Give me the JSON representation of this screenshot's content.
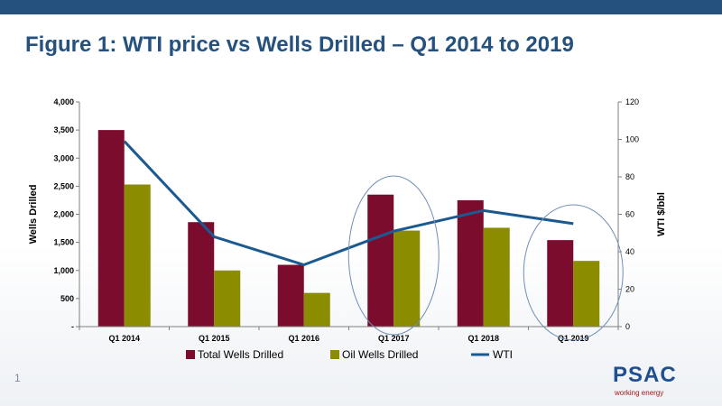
{
  "slide": {
    "title": "Figure 1:  WTI price vs Wells Drilled – Q1 2014 to 2019",
    "page_number": "1",
    "logo_text": "PSAC",
    "logo_tagline": "working energy",
    "header_bar_color": "#25517f"
  },
  "chart_data": {
    "type": "bar",
    "categories": [
      "Q1 2014",
      "Q1 2015",
      "Q1 2016",
      "Q1 2017",
      "Q1 2018",
      "Q1 2019"
    ],
    "series": [
      {
        "name": "Total Wells Drilled",
        "type": "bar",
        "axis": "left",
        "color": "#7b0c2e",
        "values": [
          3500,
          1860,
          1100,
          2350,
          2250,
          1540
        ]
      },
      {
        "name": "Oil Wells Drilled",
        "type": "bar",
        "axis": "left",
        "color": "#8c8c00",
        "values": [
          2530,
          1000,
          600,
          1710,
          1760,
          1170
        ]
      },
      {
        "name": "WTI",
        "type": "line",
        "axis": "right",
        "color": "#1b5a90",
        "values": [
          99,
          48,
          33,
          51,
          62,
          55
        ]
      }
    ],
    "ylabel": "Wells Drilled",
    "y2label": "WTI $/bbl",
    "ylim": [
      0,
      4000
    ],
    "y2lim": [
      0,
      120
    ],
    "yticks": [
      {
        "value": 0,
        "label": "-"
      },
      {
        "value": 500,
        "label": "500"
      },
      {
        "value": 1000,
        "label": "1,000"
      },
      {
        "value": 1500,
        "label": "1,500"
      },
      {
        "value": 2000,
        "label": "2,000"
      },
      {
        "value": 2500,
        "label": "2,500"
      },
      {
        "value": 3000,
        "label": "3,000"
      },
      {
        "value": 3500,
        "label": "3,500"
      },
      {
        "value": 4000,
        "label": "4,000"
      }
    ],
    "y2ticks": [
      {
        "value": 0,
        "label": "0"
      },
      {
        "value": 20,
        "label": "20"
      },
      {
        "value": 40,
        "label": "40"
      },
      {
        "value": 60,
        "label": "60"
      },
      {
        "value": 80,
        "label": "80"
      },
      {
        "value": 100,
        "label": "100"
      },
      {
        "value": 120,
        "label": "120"
      }
    ],
    "grid": false,
    "legend_position": "bottom",
    "highlighted_categories": [
      "Q1 2017",
      "Q1 2019"
    ]
  }
}
